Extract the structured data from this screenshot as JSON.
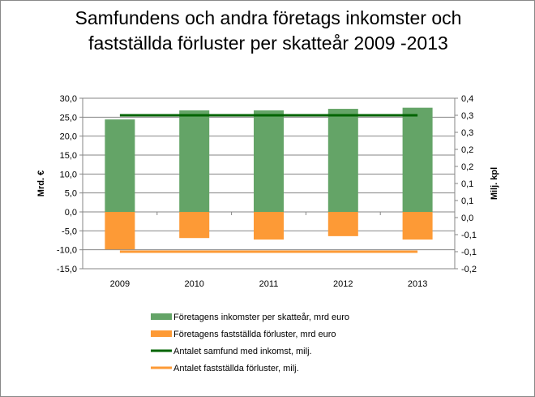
{
  "chart_data": {
    "type": "bar",
    "title_lines": [
      "Samfundens och andra företags inkomster och",
      "fastställda förluster per skatteår 2009 -2013"
    ],
    "categories": [
      "2009",
      "2010",
      "2011",
      "2012",
      "2013"
    ],
    "ylabel": "Mrd. €",
    "y2label": "Milj. kpl",
    "ylim": [
      -15,
      30
    ],
    "y_ticks": [
      "30,0",
      "25,0",
      "20,0",
      "15,0",
      "10,0",
      "5,0",
      "0,0",
      "-5,0",
      "-10,0",
      "-15,0"
    ],
    "y2lim": [
      -0.2,
      0.4
    ],
    "y2_ticks": [
      "0,4",
      "0,3",
      "0,3",
      "0,2",
      "0,2",
      "0,1",
      "0,1",
      "0,0",
      "-0,1",
      "-0,1",
      "-0,2"
    ],
    "grid": true,
    "legend_position": "bottom",
    "series": [
      {
        "name": "Företagens inkomster per skatteår, mrd  euro",
        "kind": "bar",
        "axis": "left",
        "color": "#64a467",
        "values": [
          24.4,
          26.8,
          26.8,
          27.2,
          27.5
        ]
      },
      {
        "name": "Företagens fastställda förluster, mrd  euro",
        "kind": "bar",
        "axis": "left",
        "color": "#fd9a36",
        "values": [
          -9.9,
          -6.9,
          -7.3,
          -6.4,
          -7.3
        ]
      },
      {
        "name": "Antalet samfund med inkomst, milj.",
        "kind": "line",
        "axis": "right",
        "color": "#006400",
        "values": [
          0.34,
          0.34,
          0.34,
          0.34,
          0.34
        ]
      },
      {
        "name": "Antalet fastställda förluster, milj.",
        "kind": "line",
        "axis": "right",
        "color": "#fd9a36",
        "values": [
          -0.14,
          -0.14,
          -0.14,
          -0.14,
          -0.14
        ]
      }
    ]
  }
}
